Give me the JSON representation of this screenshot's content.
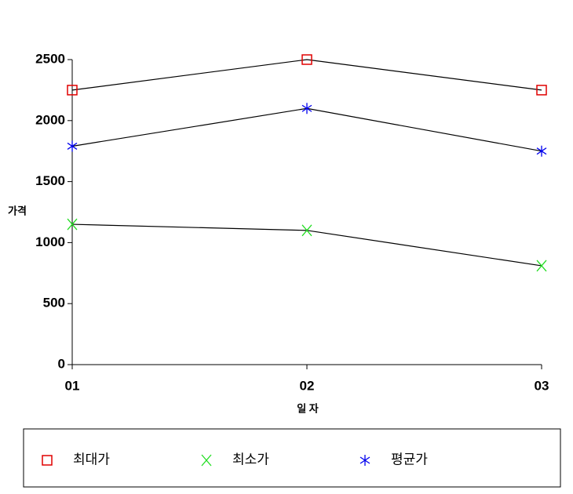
{
  "chart_data": {
    "type": "line",
    "x_label": "일 자",
    "y_label": "가격",
    "categories": [
      "01",
      "02",
      "03"
    ],
    "series": [
      {
        "name": "최대가",
        "color": "#e00000",
        "marker": "square",
        "values": [
          2250,
          2500,
          2250
        ]
      },
      {
        "name": "최소가",
        "color": "#22dd22",
        "marker": "x",
        "values": [
          1150,
          1100,
          810
        ]
      },
      {
        "name": "평균가",
        "color": "#0000ee",
        "marker": "asterisk",
        "values": [
          1790,
          2100,
          1750
        ]
      }
    ],
    "line_color": "#000000",
    "ylim": [
      0,
      2500
    ],
    "yticks": [
      0,
      500,
      1000,
      1500,
      2000,
      2500
    ],
    "grid": false,
    "legend": "bottom"
  }
}
